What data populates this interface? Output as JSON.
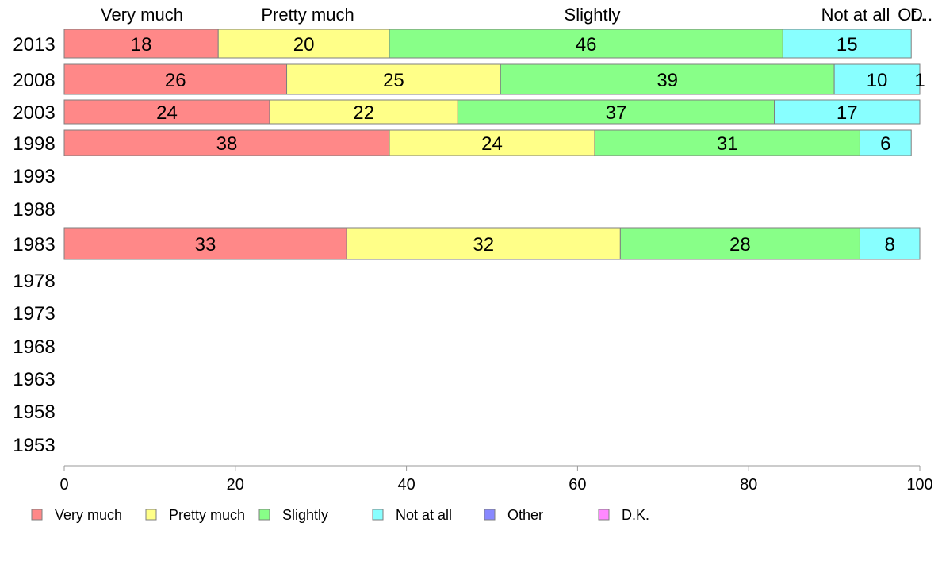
{
  "chart_data": {
    "type": "bar",
    "orientation": "horizontal",
    "stacked": true,
    "categories": [
      "2013",
      "2008",
      "2003",
      "1998",
      "1993",
      "1988",
      "1983",
      "1978",
      "1973",
      "1968",
      "1963",
      "1958",
      "1953"
    ],
    "series": [
      {
        "name": "Very much",
        "color": "#FF8888",
        "values": [
          18,
          26,
          24,
          38,
          null,
          null,
          33,
          null,
          null,
          null,
          null,
          null,
          null
        ]
      },
      {
        "name": "Pretty much",
        "color": "#FFFF88",
        "values": [
          20,
          25,
          22,
          24,
          null,
          null,
          32,
          null,
          null,
          null,
          null,
          null,
          null
        ]
      },
      {
        "name": "Slightly",
        "color": "#88FF88",
        "values": [
          46,
          39,
          37,
          31,
          null,
          null,
          28,
          null,
          null,
          null,
          null,
          null,
          null
        ]
      },
      {
        "name": "Not at all",
        "color": "#88FFFF",
        "values": [
          15,
          10,
          17,
          6,
          null,
          null,
          8,
          null,
          null,
          null,
          null,
          null,
          null
        ]
      },
      {
        "name": "Other",
        "color": "#8888FF",
        "values": [
          null,
          null,
          null,
          null,
          null,
          null,
          null,
          null,
          null,
          null,
          null,
          null,
          null
        ]
      },
      {
        "name": "D.K.",
        "color": "#FF88FF",
        "values": [
          null,
          1,
          null,
          null,
          null,
          null,
          null,
          null,
          null,
          null,
          null,
          null,
          null
        ]
      }
    ],
    "segment_labels": [
      [
        "18",
        "20",
        "46",
        "15",
        "",
        ""
      ],
      [
        "26",
        "25",
        "39",
        "10",
        "",
        "1"
      ],
      [
        "24",
        "22",
        "37",
        "17",
        "",
        ""
      ],
      [
        "38",
        "24",
        "31",
        "6",
        "",
        ""
      ],
      [
        "",
        "",
        "",
        "",
        "",
        ""
      ],
      [
        "",
        "",
        "",
        "",
        "",
        ""
      ],
      [
        "33",
        "32",
        "28",
        "8",
        "",
        ""
      ],
      [
        "",
        "",
        "",
        "",
        "",
        ""
      ],
      [
        "",
        "",
        "",
        "",
        "",
        ""
      ],
      [
        "",
        "",
        "",
        "",
        "",
        ""
      ],
      [
        "",
        "",
        "",
        "",
        "",
        ""
      ],
      [
        "",
        "",
        "",
        "",
        "",
        ""
      ],
      [
        "",
        "",
        "",
        "",
        "",
        ""
      ]
    ],
    "top_labels": [
      "Very much",
      "Pretty much",
      "Slightly",
      "Not at all",
      "Ot..",
      "D.."
    ],
    "xlim": [
      0,
      100
    ],
    "xticks": [
      0,
      20,
      40,
      60,
      80,
      100
    ],
    "grid": false,
    "legend_position": "bottom",
    "legend": [
      "Very much",
      "Pretty much",
      "Slightly",
      "Not at all",
      "Other",
      "D.K."
    ]
  }
}
